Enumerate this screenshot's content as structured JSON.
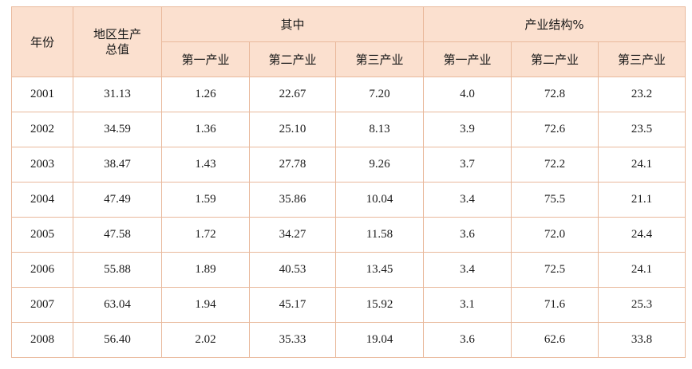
{
  "table": {
    "header": {
      "year": "年份",
      "gdp": "地区生产总值",
      "group_abs": "其中",
      "group_pct": "产业结构%",
      "sub": [
        "第一产业",
        "第二产业",
        "第三产业",
        "第一产业",
        "第二产业",
        "第三产业"
      ]
    },
    "rows": [
      [
        "2001",
        "31.13",
        "1.26",
        "22.67",
        "7.20",
        "4.0",
        "72.8",
        "23.2"
      ],
      [
        "2002",
        "34.59",
        "1.36",
        "25.10",
        "8.13",
        "3.9",
        "72.6",
        "23.5"
      ],
      [
        "2003",
        "38.47",
        "1.43",
        "27.78",
        "9.26",
        "3.7",
        "72.2",
        "24.1"
      ],
      [
        "2004",
        "47.49",
        "1.59",
        "35.86",
        "10.04",
        "3.4",
        "75.5",
        "21.1"
      ],
      [
        "2005",
        "47.58",
        "1.72",
        "34.27",
        "11.58",
        "3.6",
        "72.0",
        "24.4"
      ],
      [
        "2006",
        "55.88",
        "1.89",
        "40.53",
        "13.45",
        "3.4",
        "72.5",
        "24.1"
      ],
      [
        "2007",
        "63.04",
        "1.94",
        "45.17",
        "15.92",
        "3.1",
        "71.6",
        "25.3"
      ],
      [
        "2008",
        "56.40",
        "2.02",
        "35.33",
        "19.04",
        "3.6",
        "62.6",
        "33.8"
      ]
    ]
  }
}
